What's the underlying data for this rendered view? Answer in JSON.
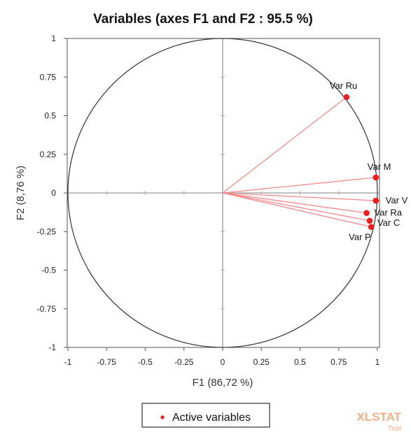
{
  "chart_data": {
    "type": "scatter",
    "title": "Variables (axes F1 and F2 : 95.5 %)",
    "xlabel": "F1 (86,72 %)",
    "ylabel": "F2 (8,76 %)",
    "xlim": [
      -1,
      1
    ],
    "ylim": [
      -1,
      1
    ],
    "xticks": [
      -1,
      -0.75,
      -0.5,
      -0.25,
      0,
      0.25,
      0.5,
      0.75,
      1
    ],
    "yticks": [
      -1,
      -0.75,
      -0.5,
      -0.25,
      0,
      0.25,
      0.5,
      0.75,
      1
    ],
    "xtick_labels": [
      "-1",
      "-0.75",
      "-0.5",
      "-0.25",
      "0",
      "0.25",
      "0.5",
      "0.75",
      "1"
    ],
    "ytick_labels": [
      "-1",
      "-0.75",
      "-0.5",
      "-0.25",
      "0",
      "0.25",
      "0.5",
      "0.75",
      "1"
    ],
    "correlation_circle": true,
    "zero_lines": true,
    "series": [
      {
        "name": "Active variables",
        "color": "#ee1c1c",
        "line_color": "#f28b8b",
        "points": [
          {
            "label": "Var Ru",
            "x": 0.8,
            "y": 0.62
          },
          {
            "label": "Var M",
            "x": 0.99,
            "y": 0.1
          },
          {
            "label": "Var V",
            "x": 0.99,
            "y": -0.05
          },
          {
            "label": "Var Ra",
            "x": 0.93,
            "y": -0.13
          },
          {
            "label": "Var C",
            "x": 0.95,
            "y": -0.18
          },
          {
            "label": "Var P",
            "x": 0.96,
            "y": -0.22
          }
        ]
      }
    ],
    "legend": {
      "position": "bottom-center",
      "label": "Active variables"
    }
  },
  "watermark": {
    "text": "XLSTAT",
    "sub": "Trial",
    "color": "#f5a06e"
  }
}
